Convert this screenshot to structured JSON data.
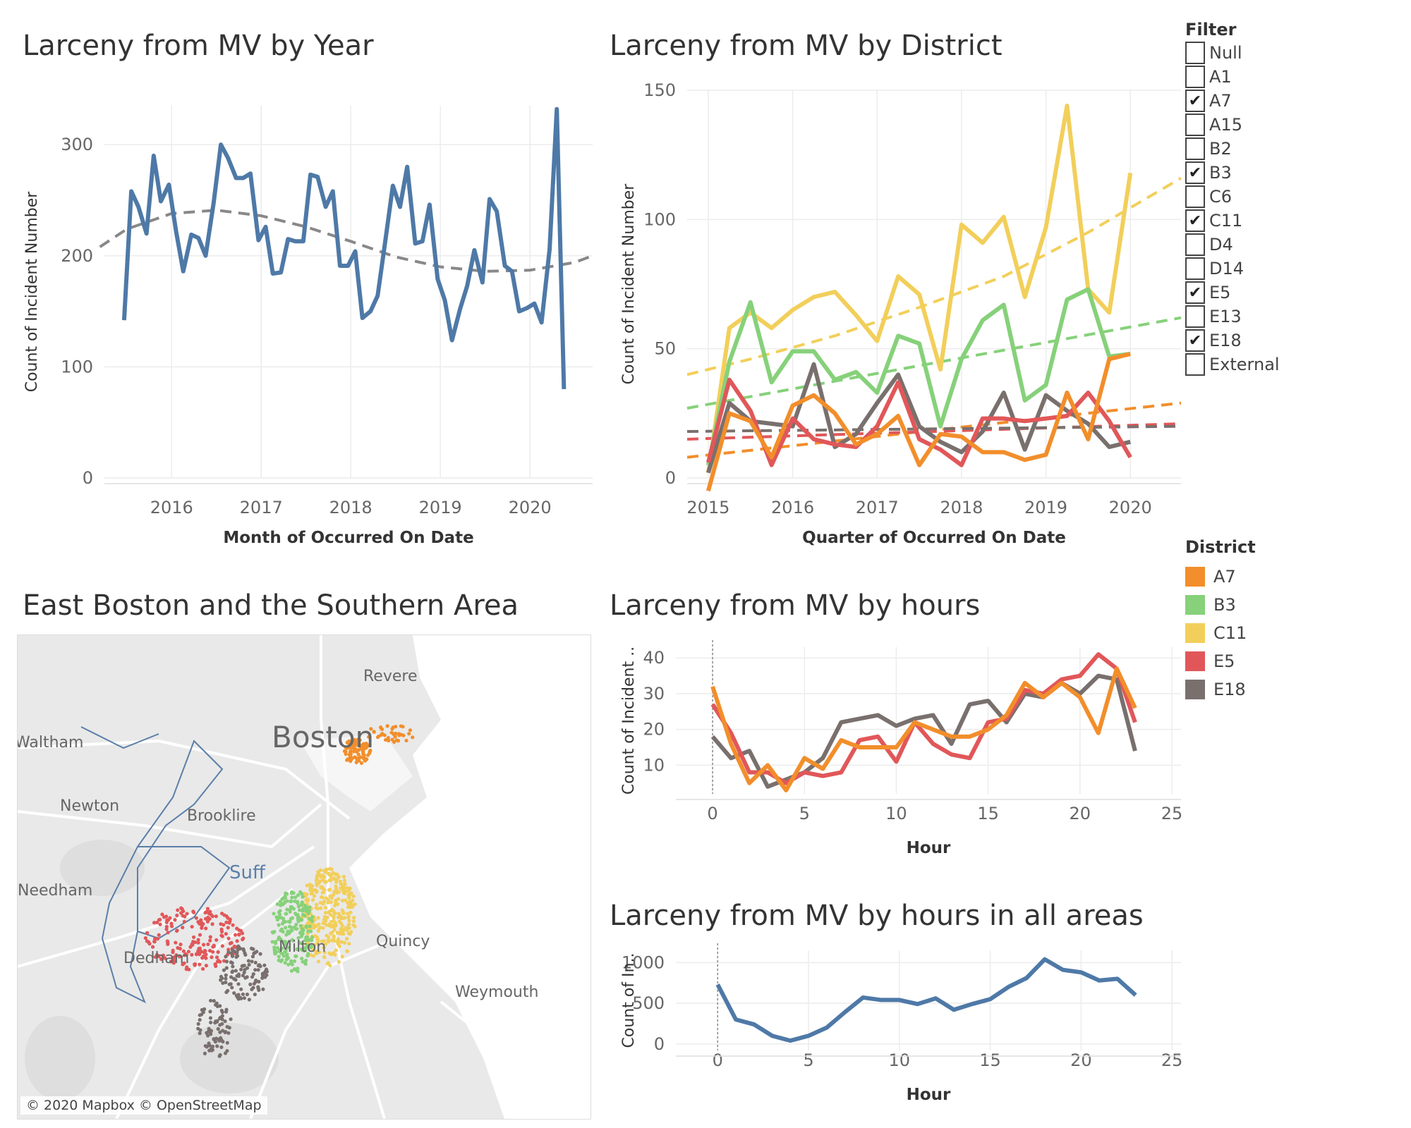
{
  "colors": {
    "A7": "#f28e2b",
    "B3": "#86d17a",
    "C11": "#f2cf5b",
    "E5": "#e15759",
    "E18": "#79706e",
    "blue": "#4e79a7"
  },
  "titles": {
    "year": "Larceny from MV by Year",
    "district": "Larceny from MV by District",
    "map": "East Boston and the Southern Area",
    "hours": "Larceny from MV by hours",
    "hours_all": "Larceny from MV by hours in all areas"
  },
  "filter": {
    "title": "Filter",
    "items": [
      {
        "label": "Null",
        "checked": false
      },
      {
        "label": "A1",
        "checked": false
      },
      {
        "label": "A7",
        "checked": true
      },
      {
        "label": "A15",
        "checked": false
      },
      {
        "label": "B2",
        "checked": false
      },
      {
        "label": "B3",
        "checked": true
      },
      {
        "label": "C6",
        "checked": false
      },
      {
        "label": "C11",
        "checked": true
      },
      {
        "label": "D4",
        "checked": false
      },
      {
        "label": "D14",
        "checked": false
      },
      {
        "label": "E5",
        "checked": true
      },
      {
        "label": "E13",
        "checked": false
      },
      {
        "label": "E18",
        "checked": true
      },
      {
        "label": "External",
        "checked": false
      }
    ]
  },
  "legend": {
    "title": "District",
    "items": [
      "A7",
      "B3",
      "C11",
      "E5",
      "E18"
    ]
  },
  "map": {
    "labels": [
      "Revere",
      "Waltham",
      "Newton",
      "Brooklire",
      "Needham",
      "Dedham",
      "Milton",
      "Quincy",
      "Weymouth",
      "Suff"
    ],
    "city": "Boston",
    "credit": "© 2020 Mapbox © OpenStreetMap"
  },
  "chart_data": [
    {
      "id": "year",
      "type": "line",
      "xlabel": "Month of Occurred On Date",
      "ylabel": "Count of Incident Number",
      "xlim": [
        2015.25,
        2020.7
      ],
      "ylim": [
        0,
        335
      ],
      "xticks": [
        2016,
        2017,
        2018,
        2019,
        2020
      ],
      "yticks": [
        0,
        100,
        200,
        300
      ],
      "series": [
        {
          "x": [
            2015.47,
            2015.55,
            2015.63,
            2015.72,
            2015.8,
            2015.88,
            2015.97,
            2016.05,
            2016.13,
            2016.22,
            2016.3,
            2016.38,
            2016.47,
            2016.55,
            2016.63,
            2016.72,
            2016.8,
            2016.88,
            2016.97,
            2017.05,
            2017.13,
            2017.22,
            2017.3,
            2017.38,
            2017.47,
            2017.55,
            2017.63,
            2017.72,
            2017.8,
            2017.88,
            2017.97,
            2018.05,
            2018.13,
            2018.22,
            2018.3,
            2018.38,
            2018.47,
            2018.55,
            2018.63,
            2018.72,
            2018.8,
            2018.88,
            2018.97,
            2019.05,
            2019.13,
            2019.22,
            2019.3,
            2019.38,
            2019.47,
            2019.55,
            2019.63,
            2019.72,
            2019.8,
            2019.88,
            2019.97,
            2020.05,
            2020.13,
            2020.22,
            2020.3,
            2020.38
          ],
          "values": [
            142,
            258,
            244,
            220,
            290,
            249,
            264,
            222,
            186,
            219,
            216,
            200,
            248,
            300,
            288,
            270,
            270,
            274,
            214,
            226,
            184,
            185,
            215,
            213,
            213,
            273,
            271,
            244,
            258,
            191,
            191,
            204,
            144,
            150,
            164,
            210,
            263,
            244,
            280,
            211,
            213,
            246,
            179,
            160,
            124,
            152,
            173,
            205,
            176,
            251,
            240,
            191,
            186,
            150,
            153,
            157,
            140,
            206,
            332,
            80
          ]
        }
      ],
      "trend": {
        "x": [
          2015.2,
          2015.5,
          2016,
          2016.5,
          2017,
          2017.5,
          2018,
          2018.5,
          2019,
          2019.5,
          2020,
          2020.5,
          2020.7
        ],
        "values": [
          208,
          224,
          238,
          241,
          236,
          226,
          213,
          199,
          190,
          186,
          187,
          194,
          200
        ]
      }
    },
    {
      "id": "district",
      "type": "line",
      "xlabel": "Quarter of Occurred On Date",
      "ylabel": "Count of Incident Number",
      "xlim": [
        2014.75,
        2020.6
      ],
      "ylim": [
        0,
        150
      ],
      "xticks": [
        2015,
        2016,
        2017,
        2018,
        2019,
        2020
      ],
      "yticks": [
        0,
        50,
        100,
        150
      ],
      "x": [
        2015.0,
        2015.25,
        2015.5,
        2015.75,
        2016.0,
        2016.25,
        2016.5,
        2016.75,
        2017.0,
        2017.25,
        2017.5,
        2017.75,
        2018.0,
        2018.25,
        2018.5,
        2018.75,
        2019.0,
        2019.25,
        2019.5,
        2019.75,
        2020.0,
        2020.25
      ],
      "series": [
        {
          "name": "C11",
          "values": [
            2,
            58,
            64,
            58,
            65,
            70,
            72,
            63,
            53,
            78,
            71,
            42,
            98,
            91,
            101,
            70,
            97,
            144,
            73,
            64,
            118,
            null
          ]
        },
        {
          "name": "B3",
          "values": [
            5,
            45,
            68,
            37,
            49,
            49,
            38,
            41,
            33,
            55,
            52,
            20,
            46,
            61,
            67,
            30,
            36,
            69,
            73,
            47,
            48,
            null
          ]
        },
        {
          "name": "E18",
          "values": [
            2,
            29,
            22,
            21,
            20,
            44,
            12,
            17,
            29,
            40,
            20,
            14,
            10,
            18,
            33,
            11,
            32,
            26,
            21,
            12,
            14,
            null
          ]
        },
        {
          "name": "E5",
          "values": [
            6,
            38,
            26,
            5,
            23,
            15,
            13,
            12,
            20,
            37,
            15,
            11,
            5,
            23,
            23,
            22,
            23,
            24,
            33,
            22,
            8,
            null
          ]
        },
        {
          "name": "A7",
          "values": [
            -5,
            25,
            22,
            8,
            28,
            32,
            25,
            13,
            17,
            24,
            5,
            17,
            16,
            10,
            10,
            7,
            9,
            33,
            15,
            46,
            48,
            null
          ]
        }
      ],
      "trends": [
        {
          "name": "C11",
          "x": [
            2014.75,
            2015.5,
            2016.5,
            2017.5,
            2018.5,
            2019.5,
            2020.6
          ],
          "values": [
            40,
            46,
            55,
            66,
            78,
            95,
            116
          ]
        },
        {
          "name": "B3",
          "x": [
            2014.75,
            2020.6
          ],
          "values": [
            27,
            62
          ]
        },
        {
          "name": "A7",
          "x": [
            2014.75,
            2020.6
          ],
          "values": [
            8,
            29
          ]
        },
        {
          "name": "E5",
          "x": [
            2014.75,
            2020.6
          ],
          "values": [
            15,
            21
          ]
        },
        {
          "name": "E18",
          "x": [
            2014.75,
            2020.6
          ],
          "values": [
            18,
            20
          ]
        }
      ]
    },
    {
      "id": "hours",
      "type": "line",
      "xlabel": "Hour",
      "ylabel": "Count of Incident ..",
      "xlim": [
        -2,
        25.5
      ],
      "ylim": [
        2,
        43
      ],
      "xticks": [
        0,
        5,
        10,
        15,
        20,
        25
      ],
      "yticks": [
        10,
        20,
        30,
        40
      ],
      "x": [
        0,
        1,
        2,
        3,
        4,
        5,
        6,
        7,
        8,
        9,
        10,
        11,
        12,
        13,
        14,
        15,
        16,
        17,
        18,
        19,
        20,
        21,
        22,
        23
      ],
      "series": [
        {
          "name": "E18",
          "values": [
            18,
            12,
            14,
            4,
            6,
            8,
            12,
            22,
            23,
            24,
            21,
            23,
            24,
            16,
            27,
            28,
            22,
            30,
            29,
            33,
            30,
            35,
            34,
            14
          ]
        },
        {
          "name": "E5",
          "values": [
            27,
            19,
            8,
            8,
            5,
            8,
            7,
            8,
            17,
            18,
            11,
            22,
            16,
            13,
            12,
            22,
            23,
            31,
            30,
            34,
            35,
            41,
            37,
            22
          ]
        },
        {
          "name": "A7",
          "values": [
            32,
            16,
            5,
            10,
            3,
            12,
            9,
            17,
            15,
            15,
            15,
            22,
            20,
            18,
            18,
            20,
            24,
            33,
            29,
            33,
            29,
            19,
            37,
            26
          ]
        }
      ],
      "vline": 0
    },
    {
      "id": "hours_all",
      "type": "line",
      "xlabel": "Hour",
      "ylabel": "Count of In..",
      "xlim": [
        -2.3,
        25.5
      ],
      "ylim": [
        -80,
        1150
      ],
      "xticks": [
        0,
        5,
        10,
        15,
        20,
        25
      ],
      "yticks": [
        0,
        500,
        1000
      ],
      "series": [
        {
          "x": [
            0,
            1,
            2,
            3,
            4,
            5,
            6,
            7,
            8,
            9,
            10,
            11,
            12,
            13,
            14,
            15,
            16,
            17,
            18,
            19,
            20,
            21,
            22,
            23
          ],
          "values": [
            730,
            300,
            240,
            100,
            40,
            100,
            200,
            390,
            570,
            540,
            540,
            490,
            560,
            420,
            490,
            550,
            700,
            810,
            1040,
            910,
            880,
            780,
            800,
            600
          ]
        }
      ],
      "vline": 0
    }
  ]
}
